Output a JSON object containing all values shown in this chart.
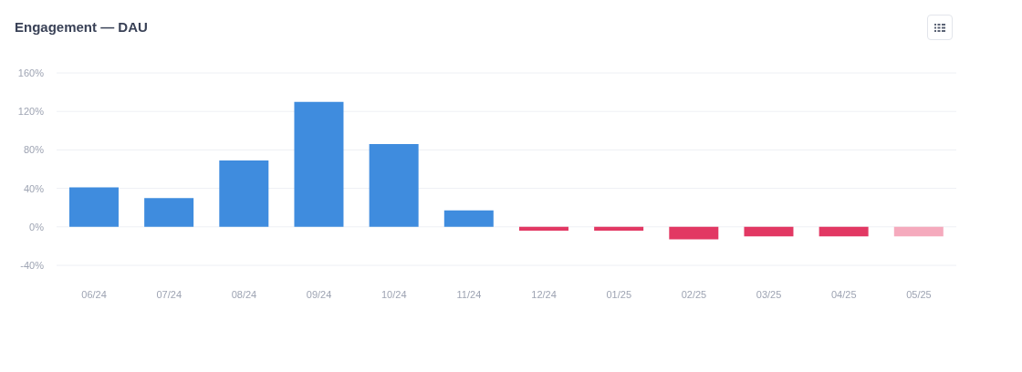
{
  "chart_data": {
    "type": "bar",
    "title": "Engagement — DAU",
    "categories": [
      "06/24",
      "07/24",
      "08/24",
      "09/24",
      "10/24",
      "11/24",
      "12/24",
      "01/25",
      "02/25",
      "03/25",
      "04/25",
      "05/25"
    ],
    "values": [
      41,
      30,
      69,
      130,
      86,
      17,
      -4,
      -4,
      -13,
      -10,
      -10,
      -10
    ],
    "colors": [
      "#3f8cde",
      "#3f8cde",
      "#3f8cde",
      "#3f8cde",
      "#3f8cde",
      "#3f8cde",
      "#e23863",
      "#e23863",
      "#e23863",
      "#e23863",
      "#e23863",
      "#f5aabd"
    ],
    "ylim": [
      -40,
      160
    ],
    "yticks": [
      {
        "value": -40,
        "label": "-40%"
      },
      {
        "value": 0,
        "label": "0%"
      },
      {
        "value": 40,
        "label": "40%"
      },
      {
        "value": 80,
        "label": "80%"
      },
      {
        "value": 120,
        "label": "120%"
      },
      {
        "value": 160,
        "label": "160%"
      }
    ],
    "grid": "y"
  }
}
